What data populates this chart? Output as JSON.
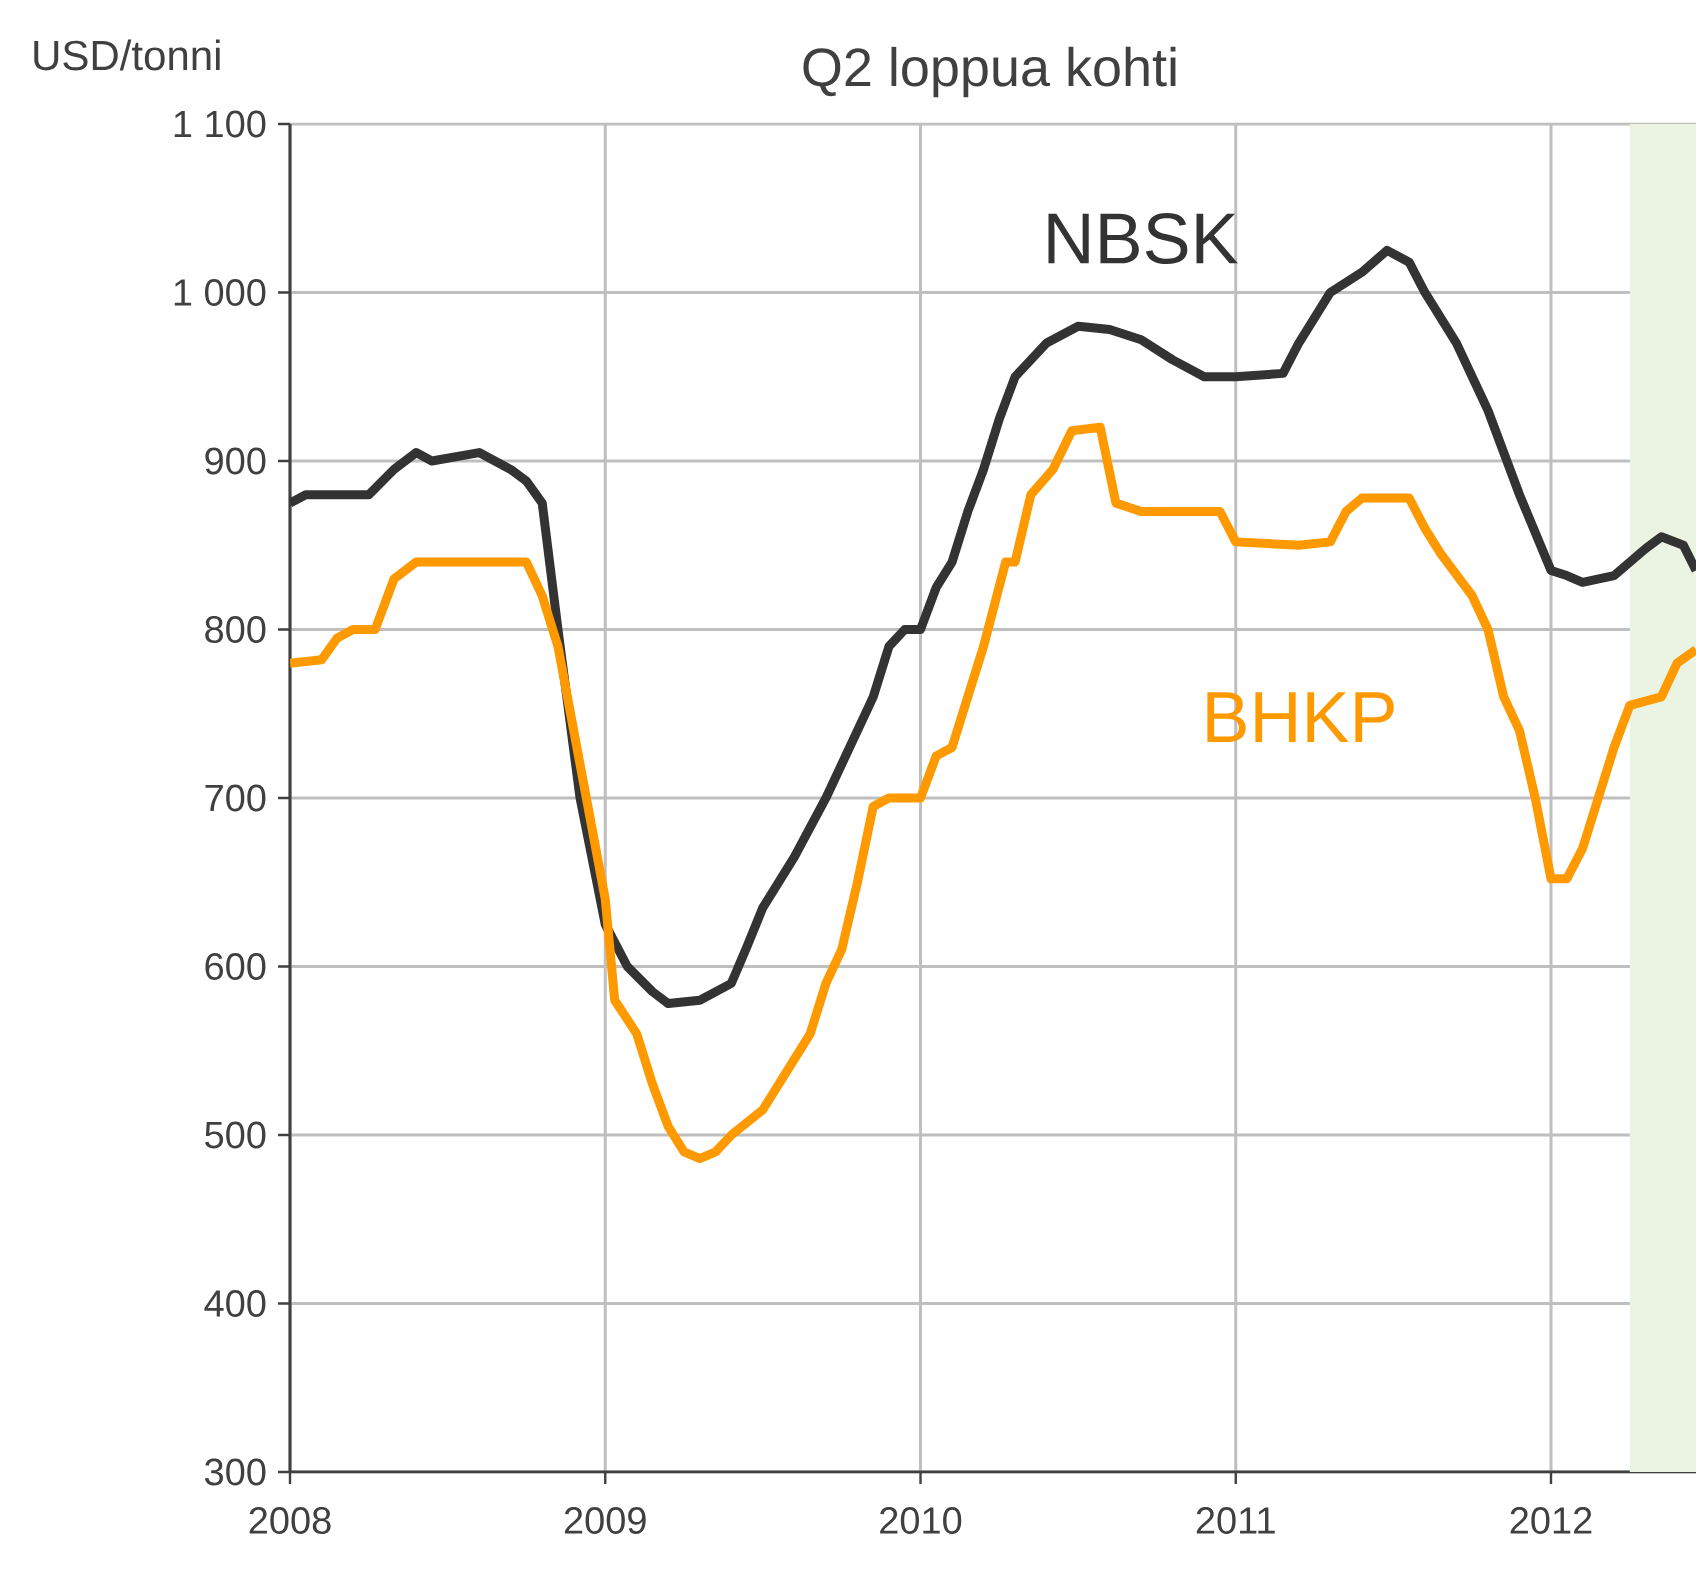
{
  "chart_data": {
    "type": "line",
    "title": "Q2 loppua kohti",
    "ylabel": "USD/tonni",
    "series": [
      {
        "name": "NBSK",
        "color": "#333333",
        "x": [
          2008.0,
          2008.05,
          2008.25,
          2008.33,
          2008.4,
          2008.45,
          2008.6,
          2008.7,
          2008.75,
          2008.8,
          2008.85,
          2008.92,
          2009.0,
          2009.07,
          2009.15,
          2009.2,
          2009.3,
          2009.4,
          2009.45,
          2009.5,
          2009.6,
          2009.7,
          2009.8,
          2009.85,
          2009.9,
          2009.95,
          2010.0,
          2010.05,
          2010.1,
          2010.15,
          2010.2,
          2010.25,
          2010.3,
          2010.4,
          2010.5,
          2010.6,
          2010.7,
          2010.8,
          2010.9,
          2011.0,
          2011.15,
          2011.2,
          2011.3,
          2011.4,
          2011.48,
          2011.55,
          2011.6,
          2011.7,
          2011.8,
          2011.9,
          2012.0,
          2012.05,
          2012.1,
          2012.2,
          2012.3,
          2012.35,
          2012.42,
          2012.46
        ],
        "values": [
          875,
          880,
          880,
          895,
          905,
          900,
          905,
          895,
          888,
          875,
          800,
          700,
          625,
          600,
          585,
          578,
          580,
          590,
          612,
          635,
          665,
          700,
          740,
          760,
          790,
          800,
          800,
          825,
          840,
          870,
          895,
          925,
          950,
          970,
          980,
          978,
          972,
          960,
          950,
          950,
          952,
          970,
          1000,
          1012,
          1025,
          1018,
          1000,
          970,
          930,
          880,
          835,
          832,
          828,
          832,
          848,
          855,
          850,
          835
        ]
      },
      {
        "name": "BHKP",
        "color": "#ff9900",
        "x": [
          2008.0,
          2008.1,
          2008.15,
          2008.2,
          2008.27,
          2008.33,
          2008.4,
          2008.75,
          2008.8,
          2008.85,
          2008.9,
          2008.95,
          2009.0,
          2009.03,
          2009.1,
          2009.15,
          2009.2,
          2009.25,
          2009.3,
          2009.35,
          2009.4,
          2009.5,
          2009.55,
          2009.65,
          2009.7,
          2009.75,
          2009.8,
          2009.85,
          2009.9,
          2010.0,
          2010.05,
          2010.1,
          2010.15,
          2010.2,
          2010.27,
          2010.3,
          2010.35,
          2010.42,
          2010.48,
          2010.57,
          2010.62,
          2010.7,
          2010.95,
          2011.0,
          2011.2,
          2011.3,
          2011.35,
          2011.4,
          2011.55,
          2011.6,
          2011.65,
          2011.75,
          2011.8,
          2011.85,
          2011.9,
          2011.95,
          2012.0,
          2012.05,
          2012.1,
          2012.15,
          2012.2,
          2012.25,
          2012.35,
          2012.4,
          2012.46
        ],
        "values": [
          780,
          782,
          795,
          800,
          800,
          830,
          840,
          840,
          820,
          790,
          740,
          690,
          640,
          580,
          560,
          530,
          505,
          490,
          486,
          490,
          500,
          515,
          530,
          560,
          590,
          610,
          650,
          695,
          700,
          700,
          725,
          730,
          760,
          790,
          840,
          840,
          880,
          895,
          918,
          920,
          875,
          870,
          870,
          852,
          850,
          852,
          870,
          878,
          878,
          860,
          845,
          820,
          800,
          760,
          740,
          700,
          652,
          652,
          670,
          700,
          730,
          755,
          760,
          780,
          788
        ]
      }
    ],
    "xlim": [
      2008,
      2012.46
    ],
    "ylim": [
      300,
      1100
    ],
    "xticks": [
      2008,
      2009,
      2010,
      2011,
      2012
    ],
    "yticks": [
      300,
      400,
      500,
      600,
      700,
      800,
      900,
      {
        "value": 1000,
        "label": "1 000"
      },
      {
        "value": 1100,
        "label": "1 100"
      }
    ],
    "bands": [
      {
        "axis": "x",
        "from": 2012.25,
        "to": 2012.46,
        "color": "#ebf3e3"
      }
    ],
    "grid": true,
    "legend": false
  }
}
